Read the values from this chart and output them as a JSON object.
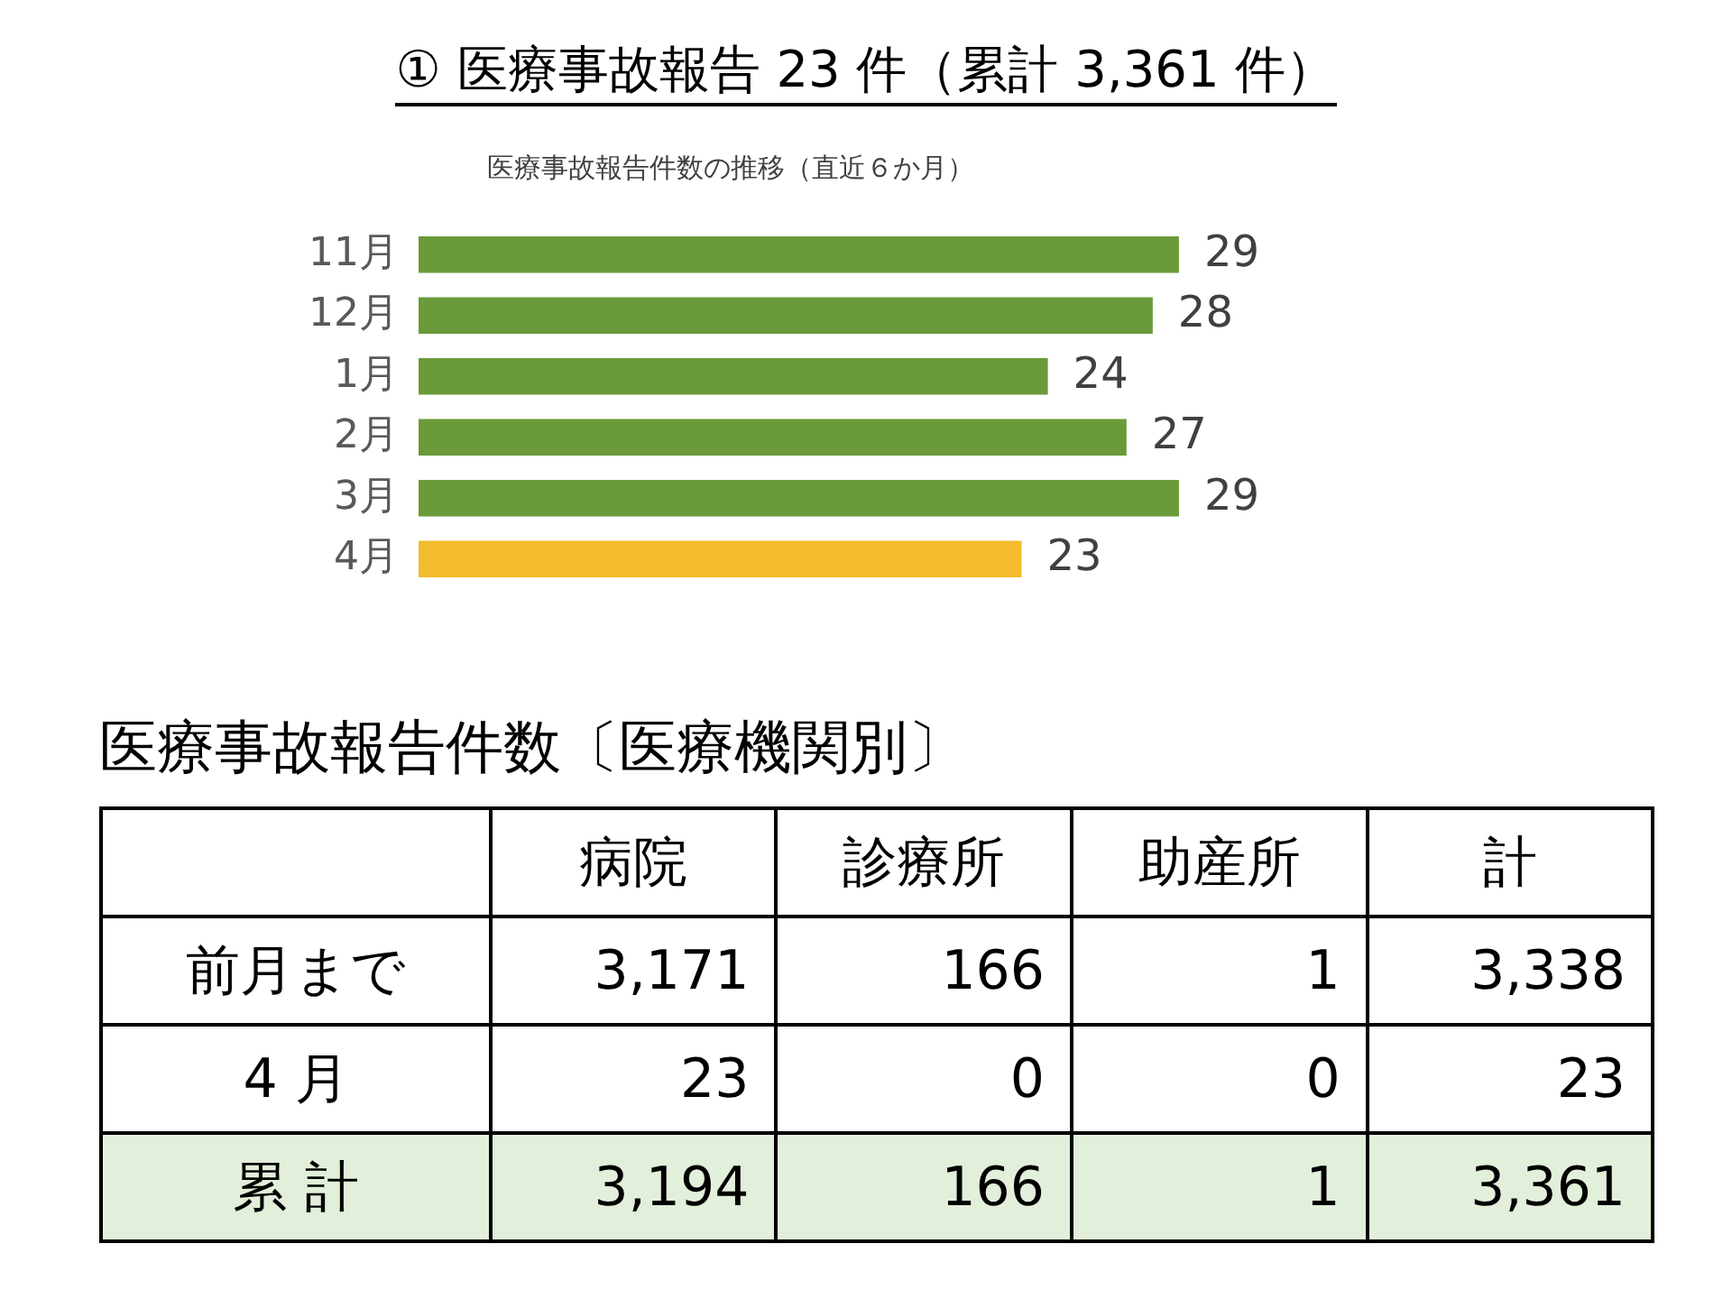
{
  "chart_data": [
    {
      "type": "bar",
      "title": "① 医療事故報告  23 件（累計 3,361 件）",
      "subtitle": "医療事故報告件数の推移（直近６か月）",
      "orientation": "horizontal",
      "categories": [
        "11月",
        "12月",
        "1月",
        "2月",
        "3月",
        "4月"
      ],
      "values": [
        29,
        28,
        24,
        27,
        29,
        23
      ],
      "colors": [
        "#6a9a3a",
        "#6a9a3a",
        "#6a9a3a",
        "#6a9a3a",
        "#6a9a3a",
        "#f4bc2c"
      ],
      "data_labels": true
    },
    {
      "type": "other",
      "title": "医療事故報告件数〔医療機関別〕",
      "categories": [
        "病院",
        "診療所",
        "助産所",
        "計"
      ],
      "y_categories": [
        "前月まで",
        "4 月",
        "累 計"
      ],
      "cell_labels": [
        [
          "3,171",
          "166",
          "1",
          "3,338"
        ],
        [
          "23",
          "0",
          "0",
          "23"
        ],
        [
          "3,194",
          "166",
          "1",
          "3,361"
        ]
      ],
      "colors": [
        "#ffffff",
        "#ffffff",
        "#e2efda"
      ]
    }
  ]
}
